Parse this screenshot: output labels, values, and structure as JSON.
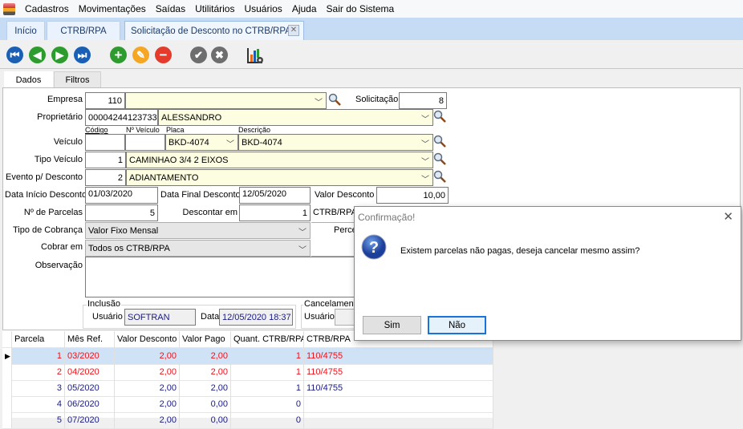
{
  "menu": {
    "items": [
      "Cadastros",
      "Movimentações",
      "Saídas",
      "Utilitários",
      "Usuários",
      "Ajuda",
      "Sair do Sistema"
    ]
  },
  "tabs": [
    {
      "label": "Início"
    },
    {
      "label": "CTRB/RPA"
    },
    {
      "label": "Solicitação de Desconto no CTRB/RPA",
      "active": true
    }
  ],
  "toolbar": {
    "icons": [
      "first-icon",
      "previous-icon",
      "next-icon",
      "last-icon",
      "add-icon",
      "edit-icon",
      "delete-icon",
      "confirm-icon",
      "cancel-icon",
      "report-chart-icon"
    ],
    "colors": {
      "nav": "#1a5fb4",
      "add": "#2e9b2e",
      "edit": "#f5a623",
      "delete": "#e53b2c",
      "gray": "#6e6e6e"
    }
  },
  "subtabs": [
    "Dados",
    "Filtros"
  ],
  "form": {
    "empresa": {
      "label": "Empresa",
      "code": "110",
      "name": ""
    },
    "solicitacao": {
      "label": "Solicitação",
      "value": "8"
    },
    "proprietario": {
      "label": "Proprietário",
      "code": "00004244123733",
      "name": "ALESSANDRO"
    },
    "veiculo": {
      "label": "Veículo",
      "col_codigo": "Código",
      "col_numero": "Nº Veículo",
      "col_placa": "Placa",
      "col_descricao": "Descrição",
      "codigo": "",
      "numero": "",
      "placa": "BKD-4074",
      "descricao": "BKD-4074"
    },
    "tipo_veiculo": {
      "label": "Tipo Veículo",
      "code": "1",
      "name": "CAMINHAO 3/4 2 EIXOS"
    },
    "evento": {
      "label": "Evento p/ Desconto",
      "code": "2",
      "name": "ADIANTAMENTO"
    },
    "data_inicio": {
      "label": "Data Início Desconto",
      "value": "01/03/2020"
    },
    "data_final": {
      "label": "Data Final Desconto",
      "value": "12/05/2020"
    },
    "valor_desconto": {
      "label": "Valor Desconto",
      "value": "10,00"
    },
    "parcelas": {
      "label": "Nº de Parcelas",
      "value": "5"
    },
    "descontar_em": {
      "label": "Descontar em",
      "value": "1",
      "suffix": "CTRB/RPA"
    },
    "percentual_label": "Perce",
    "tipo_cobranca": {
      "label": "Tipo de Cobrança",
      "value": "Valor Fixo Mensal"
    },
    "cobrar_em": {
      "label": "Cobrar em",
      "value": "Todos os CTRB/RPA"
    },
    "observacao": {
      "label": "Observação",
      "value": ""
    },
    "inclusao": {
      "title": "Inclusão",
      "usuario_label": "Usuário",
      "usuario": "SOFTRAN",
      "data_label": "Data",
      "data": "12/05/2020 18:37"
    },
    "cancelamento": {
      "title": "Cancelament",
      "usuario_label": "Usuário",
      "usuario": ""
    }
  },
  "grid": {
    "columns": [
      "Parcela",
      "Mês Ref.",
      "Valor Desconto",
      "Valor Pago",
      "Quant. CTRB/RPA",
      "CTRB/RPA"
    ],
    "rows": [
      {
        "cells": [
          "1",
          "03/2020",
          "2,00",
          "2,00",
          "1",
          "110/4755"
        ],
        "color": "#e8141b",
        "selected": true
      },
      {
        "cells": [
          "2",
          "04/2020",
          "2,00",
          "2,00",
          "1",
          "110/4755"
        ],
        "color": "#e8141b"
      },
      {
        "cells": [
          "3",
          "05/2020",
          "2,00",
          "2,00",
          "1",
          "110/4755"
        ],
        "color": "#1a1a80"
      },
      {
        "cells": [
          "4",
          "06/2020",
          "2,00",
          "0,00",
          "0",
          ""
        ],
        "color": "#1a1a80"
      },
      {
        "cells": [
          "5",
          "07/2020",
          "2,00",
          "0,00",
          "0",
          ""
        ],
        "color": "#1a1a80"
      }
    ]
  },
  "dialog": {
    "title": "Confirmação!",
    "message": "Existem parcelas não pagas, deseja cancelar mesmo assim?",
    "yes": "Sim",
    "no": "Não",
    "icon": "question-icon"
  }
}
